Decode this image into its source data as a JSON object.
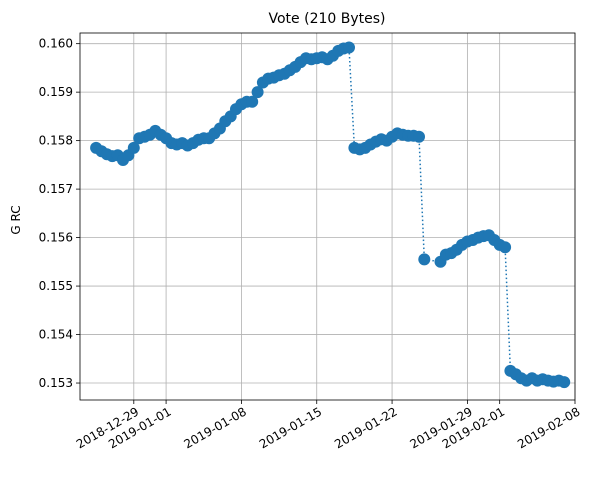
{
  "chart_data": {
    "type": "scatter",
    "title": "Vote (210 Bytes)",
    "xlabel": "",
    "ylabel": "G RC",
    "grid": true,
    "connector_line": "dotted",
    "x_axis": {
      "type": "date",
      "ticks": [
        "2018-12-29",
        "2019-01-01",
        "2019-01-08",
        "2019-01-15",
        "2019-01-22",
        "2019-01-29",
        "2019-02-01",
        "2019-02-08"
      ],
      "xlim": [
        "2018-12-24",
        "2019-02-08"
      ]
    },
    "y_axis": {
      "ticks": [
        "0.153",
        "0.154",
        "0.155",
        "0.156",
        "0.157",
        "0.158",
        "0.159",
        "0.160"
      ],
      "ylim": [
        0.15265,
        0.16022
      ]
    },
    "colors": {
      "series": "#1f77b4",
      "grid": "#b0b0b0"
    },
    "series": [
      {
        "x": [
          "2018-12-25T12:00",
          "2018-12-26",
          "2018-12-26T12:00",
          "2018-12-27",
          "2018-12-27T12:00",
          "2018-12-28",
          "2018-12-28T12:00",
          "2018-12-29",
          "2018-12-29T12:00",
          "2018-12-30",
          "2018-12-30T12:00",
          "2018-12-31",
          "2018-12-31T12:00",
          "2019-01-01",
          "2019-01-01T12:00",
          "2019-01-02",
          "2019-01-02T12:00",
          "2019-01-03",
          "2019-01-03T12:00",
          "2019-01-04",
          "2019-01-04T12:00",
          "2019-01-05",
          "2019-01-05T12:00",
          "2019-01-06",
          "2019-01-06T12:00",
          "2019-01-07",
          "2019-01-07T12:00",
          "2019-01-08",
          "2019-01-08T12:00",
          "2019-01-09",
          "2019-01-09T12:00",
          "2019-01-10",
          "2019-01-10T12:00",
          "2019-01-11",
          "2019-01-11T12:00",
          "2019-01-12",
          "2019-01-12T12:00",
          "2019-01-13",
          "2019-01-13T12:00",
          "2019-01-14",
          "2019-01-14T12:00",
          "2019-01-15",
          "2019-01-15T12:00",
          "2019-01-16",
          "2019-01-16T12:00",
          "2019-01-17",
          "2019-01-17T12:00",
          "2019-01-18",
          "2019-01-18T12:00",
          "2019-01-19",
          "2019-01-19T12:00",
          "2019-01-20",
          "2019-01-20T12:00",
          "2019-01-21",
          "2019-01-21T12:00",
          "2019-01-22",
          "2019-01-22T12:00",
          "2019-01-23",
          "2019-01-23T12:00",
          "2019-01-24",
          "2019-01-24T12:00",
          "2019-01-25",
          "2019-01-26T12:00",
          "2019-01-27",
          "2019-01-27T12:00",
          "2019-01-28",
          "2019-01-28T12:00",
          "2019-01-29",
          "2019-01-29T12:00",
          "2019-01-30",
          "2019-01-30T12:00",
          "2019-01-31",
          "2019-01-31T12:00",
          "2019-02-01",
          "2019-02-01T12:00",
          "2019-02-02",
          "2019-02-02T12:00",
          "2019-02-03",
          "2019-02-03T12:00",
          "2019-02-04",
          "2019-02-04T12:00",
          "2019-02-05",
          "2019-02-05T12:00",
          "2019-02-06",
          "2019-02-06T12:00",
          "2019-02-07"
        ],
        "y": [
          0.15785,
          0.15778,
          0.15772,
          0.15768,
          0.1577,
          0.1576,
          0.1577,
          0.15785,
          0.15805,
          0.15808,
          0.15812,
          0.1582,
          0.15812,
          0.15805,
          0.15795,
          0.15792,
          0.15795,
          0.1579,
          0.15795,
          0.15802,
          0.15805,
          0.15805,
          0.15815,
          0.15825,
          0.1584,
          0.1585,
          0.15865,
          0.15875,
          0.1588,
          0.1588,
          0.159,
          0.1592,
          0.15928,
          0.1593,
          0.15935,
          0.15938,
          0.15945,
          0.15952,
          0.15962,
          0.1597,
          0.15968,
          0.1597,
          0.15972,
          0.15968,
          0.15975,
          0.15985,
          0.1599,
          0.15992,
          0.15785,
          0.15782,
          0.15785,
          0.15792,
          0.15798,
          0.15803,
          0.158,
          0.15808,
          0.15815,
          0.15812,
          0.1581,
          0.1581,
          0.15808,
          0.15555,
          0.1555,
          0.15565,
          0.15568,
          0.15575,
          0.15585,
          0.15592,
          0.15595,
          0.156,
          0.15603,
          0.15605,
          0.15595,
          0.15585,
          0.1558,
          0.15325,
          0.15318,
          0.1531,
          0.15305,
          0.1531,
          0.15305,
          0.15308,
          0.15305,
          0.15303,
          0.15305,
          0.15302
        ]
      }
    ]
  }
}
